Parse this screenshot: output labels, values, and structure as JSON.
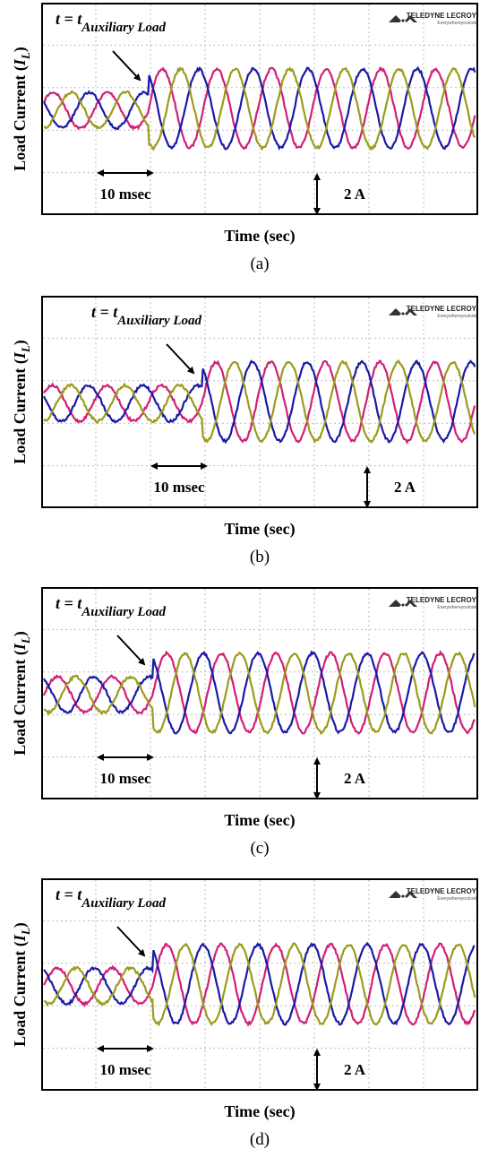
{
  "panels": [
    {
      "annotation": {
        "text": "t = t",
        "subscript": "Auxiliary Load"
      },
      "logo": {
        "brand": "TELEDYNE LECROY",
        "tagline": "Everywhereyoulook"
      },
      "y_label": {
        "text": "Load Current (",
        "symbol": "I",
        "subscript": "L",
        "close": ")"
      },
      "time_scale": "10 msec",
      "current_scale": "2 A",
      "x_label": "Time (sec)",
      "caption": "(a)"
    },
    {
      "annotation": {
        "text": "t = t",
        "subscript": "Auxiliary Load"
      },
      "logo": {
        "brand": "TELEDYNE LECROY",
        "tagline": "Everywhereyoulook"
      },
      "y_label": {
        "text": "Load Current (",
        "symbol": "I",
        "subscript": "L",
        "close": ")"
      },
      "time_scale": "10 msec",
      "current_scale": "2 A",
      "x_label": "Time (sec)",
      "caption": "(b)"
    },
    {
      "annotation": {
        "text": "t = t",
        "subscript": "Auxiliary Load"
      },
      "logo": {
        "brand": "TELEDYNE LECROY",
        "tagline": "Everywhereyoulook"
      },
      "y_label": {
        "text": "Load Current (",
        "symbol": "I",
        "subscript": "L",
        "close": ")"
      },
      "time_scale": "10 msec",
      "current_scale": "2 A",
      "x_label": "Time (sec)",
      "caption": "(c)"
    },
    {
      "annotation": {
        "text": "t = t",
        "subscript": "Auxiliary Load"
      },
      "logo": {
        "brand": "TELEDYNE LECROY",
        "tagline": "Everywhereyoulook"
      },
      "y_label": {
        "text": "Load Current (",
        "symbol": "I",
        "subscript": "L",
        "close": ")"
      },
      "time_scale": "10 msec",
      "current_scale": "2 A",
      "x_label": "Time (sec)",
      "caption": "(d)"
    }
  ]
}
